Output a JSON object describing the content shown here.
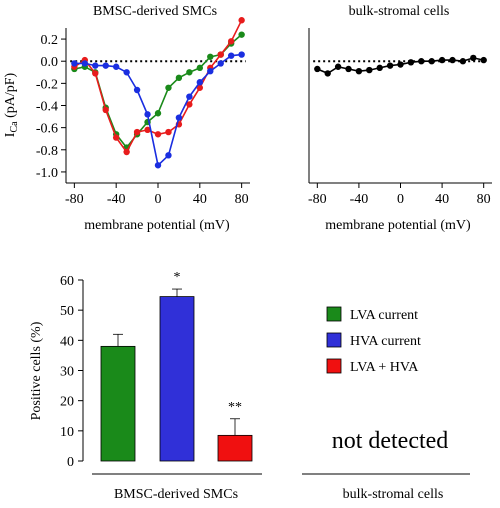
{
  "chart_data": [
    {
      "type": "line",
      "title": "BMSC-derived SMCs",
      "xlabel": "membrane potential (mV)",
      "ylabel_main": "I",
      "ylabel_sub": "Ca",
      "ylabel_unit": " (pA/pF)",
      "xlim": [
        -88,
        88
      ],
      "ylim": [
        -1.1,
        0.3
      ],
      "xticks": [
        -80,
        -40,
        0,
        40,
        80
      ],
      "xtick_labels": [
        "-80",
        "-40",
        "0",
        "40",
        "80"
      ],
      "yticks": [
        0.2,
        0.0,
        -0.2,
        -0.4,
        -0.6,
        -0.8,
        -1.0
      ],
      "ytick_labels": [
        "0.2",
        "0.0",
        "-0.2",
        "-0.4",
        "-0.6",
        "-0.8",
        "-1.0"
      ],
      "zero_line": "dotted",
      "series": [
        {
          "color": "#1a8a1a",
          "x": [
            -80,
            -70,
            -60,
            -50,
            -40,
            -30,
            -20,
            -10,
            0,
            10,
            20,
            30,
            40,
            50,
            60,
            70,
            80
          ],
          "y": [
            -0.07,
            -0.05,
            -0.1,
            -0.42,
            -0.66,
            -0.78,
            -0.66,
            -0.55,
            -0.47,
            -0.24,
            -0.15,
            -0.1,
            -0.06,
            0.04,
            0.06,
            0.16,
            0.24
          ]
        },
        {
          "color": "#e81c1c",
          "x": [
            -80,
            -70,
            -60,
            -50,
            -40,
            -30,
            -20,
            -10,
            0,
            10,
            20,
            30,
            40,
            50,
            60,
            70,
            80
          ],
          "y": [
            -0.05,
            0.01,
            -0.11,
            -0.44,
            -0.69,
            -0.82,
            -0.64,
            -0.62,
            -0.66,
            -0.64,
            -0.57,
            -0.39,
            -0.24,
            -0.06,
            0.06,
            0.18,
            0.37
          ]
        },
        {
          "color": "#1a2ee0",
          "x": [
            -80,
            -70,
            -60,
            -50,
            -40,
            -30,
            -20,
            -10,
            0,
            10,
            20,
            30,
            40,
            50,
            60,
            70,
            80
          ],
          "y": [
            -0.02,
            -0.02,
            -0.04,
            -0.04,
            -0.05,
            -0.1,
            -0.26,
            -0.48,
            -0.94,
            -0.85,
            -0.51,
            -0.32,
            -0.19,
            -0.09,
            -0.02,
            0.05,
            0.06
          ]
        }
      ]
    },
    {
      "type": "line",
      "title": "bulk-stromal cells",
      "xlabel": "membrane potential (mV)",
      "xlim": [
        -88,
        88
      ],
      "ylim": [
        -1.1,
        0.3
      ],
      "xticks": [
        -80,
        -40,
        0,
        40,
        80
      ],
      "xtick_labels": [
        "-80",
        "-40",
        "0",
        "40",
        "80"
      ],
      "zero_line": "dotted",
      "series": [
        {
          "color": "#000000",
          "x": [
            -80,
            -70,
            -60,
            -50,
            -40,
            -30,
            -20,
            -10,
            0,
            10,
            20,
            30,
            40,
            50,
            60,
            70,
            80
          ],
          "y": [
            -0.07,
            -0.11,
            -0.05,
            -0.07,
            -0.09,
            -0.08,
            -0.06,
            -0.04,
            -0.03,
            -0.01,
            0.0,
            0.0,
            0.01,
            0.01,
            0.0,
            0.03,
            0.01
          ]
        }
      ]
    },
    {
      "type": "bar",
      "ylabel": "Positive cells (%)",
      "ylim": [
        0,
        60
      ],
      "yticks": [
        0,
        10,
        20,
        30,
        40,
        50,
        60
      ],
      "ytick_labels": [
        "0",
        "10",
        "20",
        "30",
        "40",
        "50",
        "60"
      ],
      "group_labels": [
        "BMSC-derived SMCs",
        "bulk-stromal cells"
      ],
      "categories": [
        "LVA current",
        "HVA current",
        "LVA + HVA"
      ],
      "colors": [
        "#1a8a1a",
        "#3030d8",
        "#f01010"
      ],
      "values": [
        38,
        54.5,
        8.5
      ],
      "errors": [
        4,
        2.5,
        5.5
      ],
      "significance": [
        "",
        "*",
        "**"
      ],
      "note": "not detected",
      "legend": {
        "placement": "right",
        "entries": [
          "LVA current",
          "HVA current",
          "LVA + HVA"
        ]
      }
    }
  ]
}
